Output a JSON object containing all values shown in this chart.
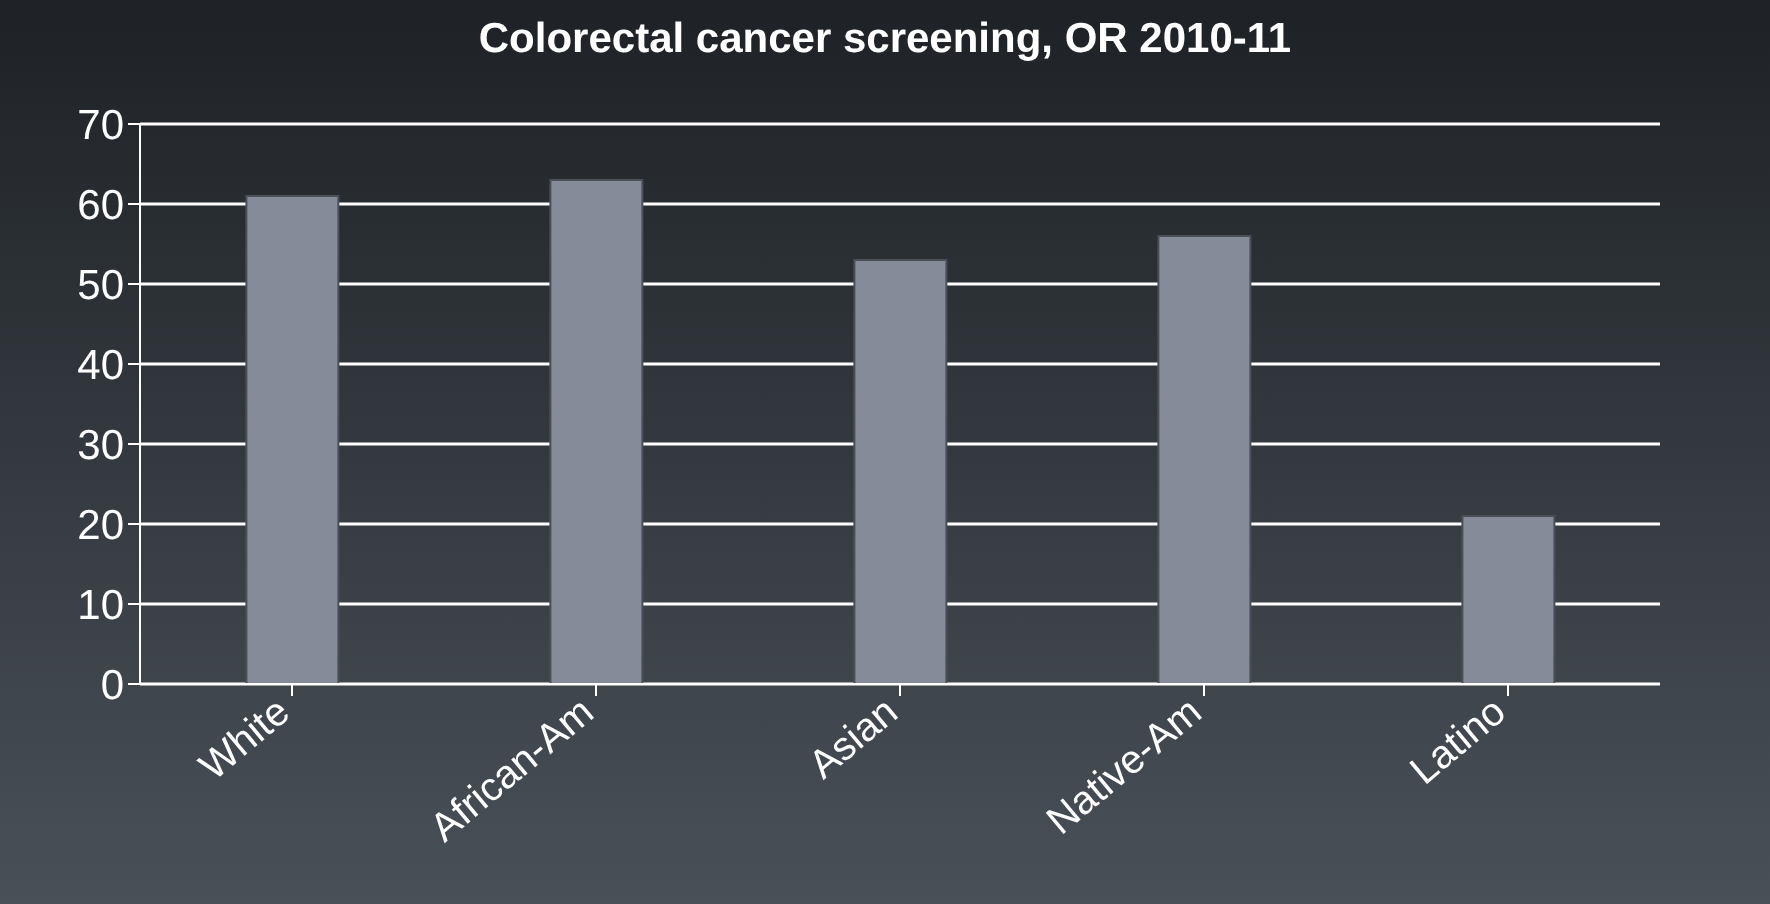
{
  "chart_data": {
    "type": "bar",
    "title": "Colorectal  cancer screening, OR 2010-11",
    "categories": [
      "White",
      "African-Am",
      "Asian",
      "Native-Am",
      "Latino"
    ],
    "values": [
      61,
      63,
      53,
      56,
      21
    ],
    "color": "#858b98",
    "ylim": [
      0,
      70
    ],
    "yticks": [
      0,
      10,
      20,
      30,
      40,
      50,
      60,
      70
    ],
    "grid": "y"
  }
}
